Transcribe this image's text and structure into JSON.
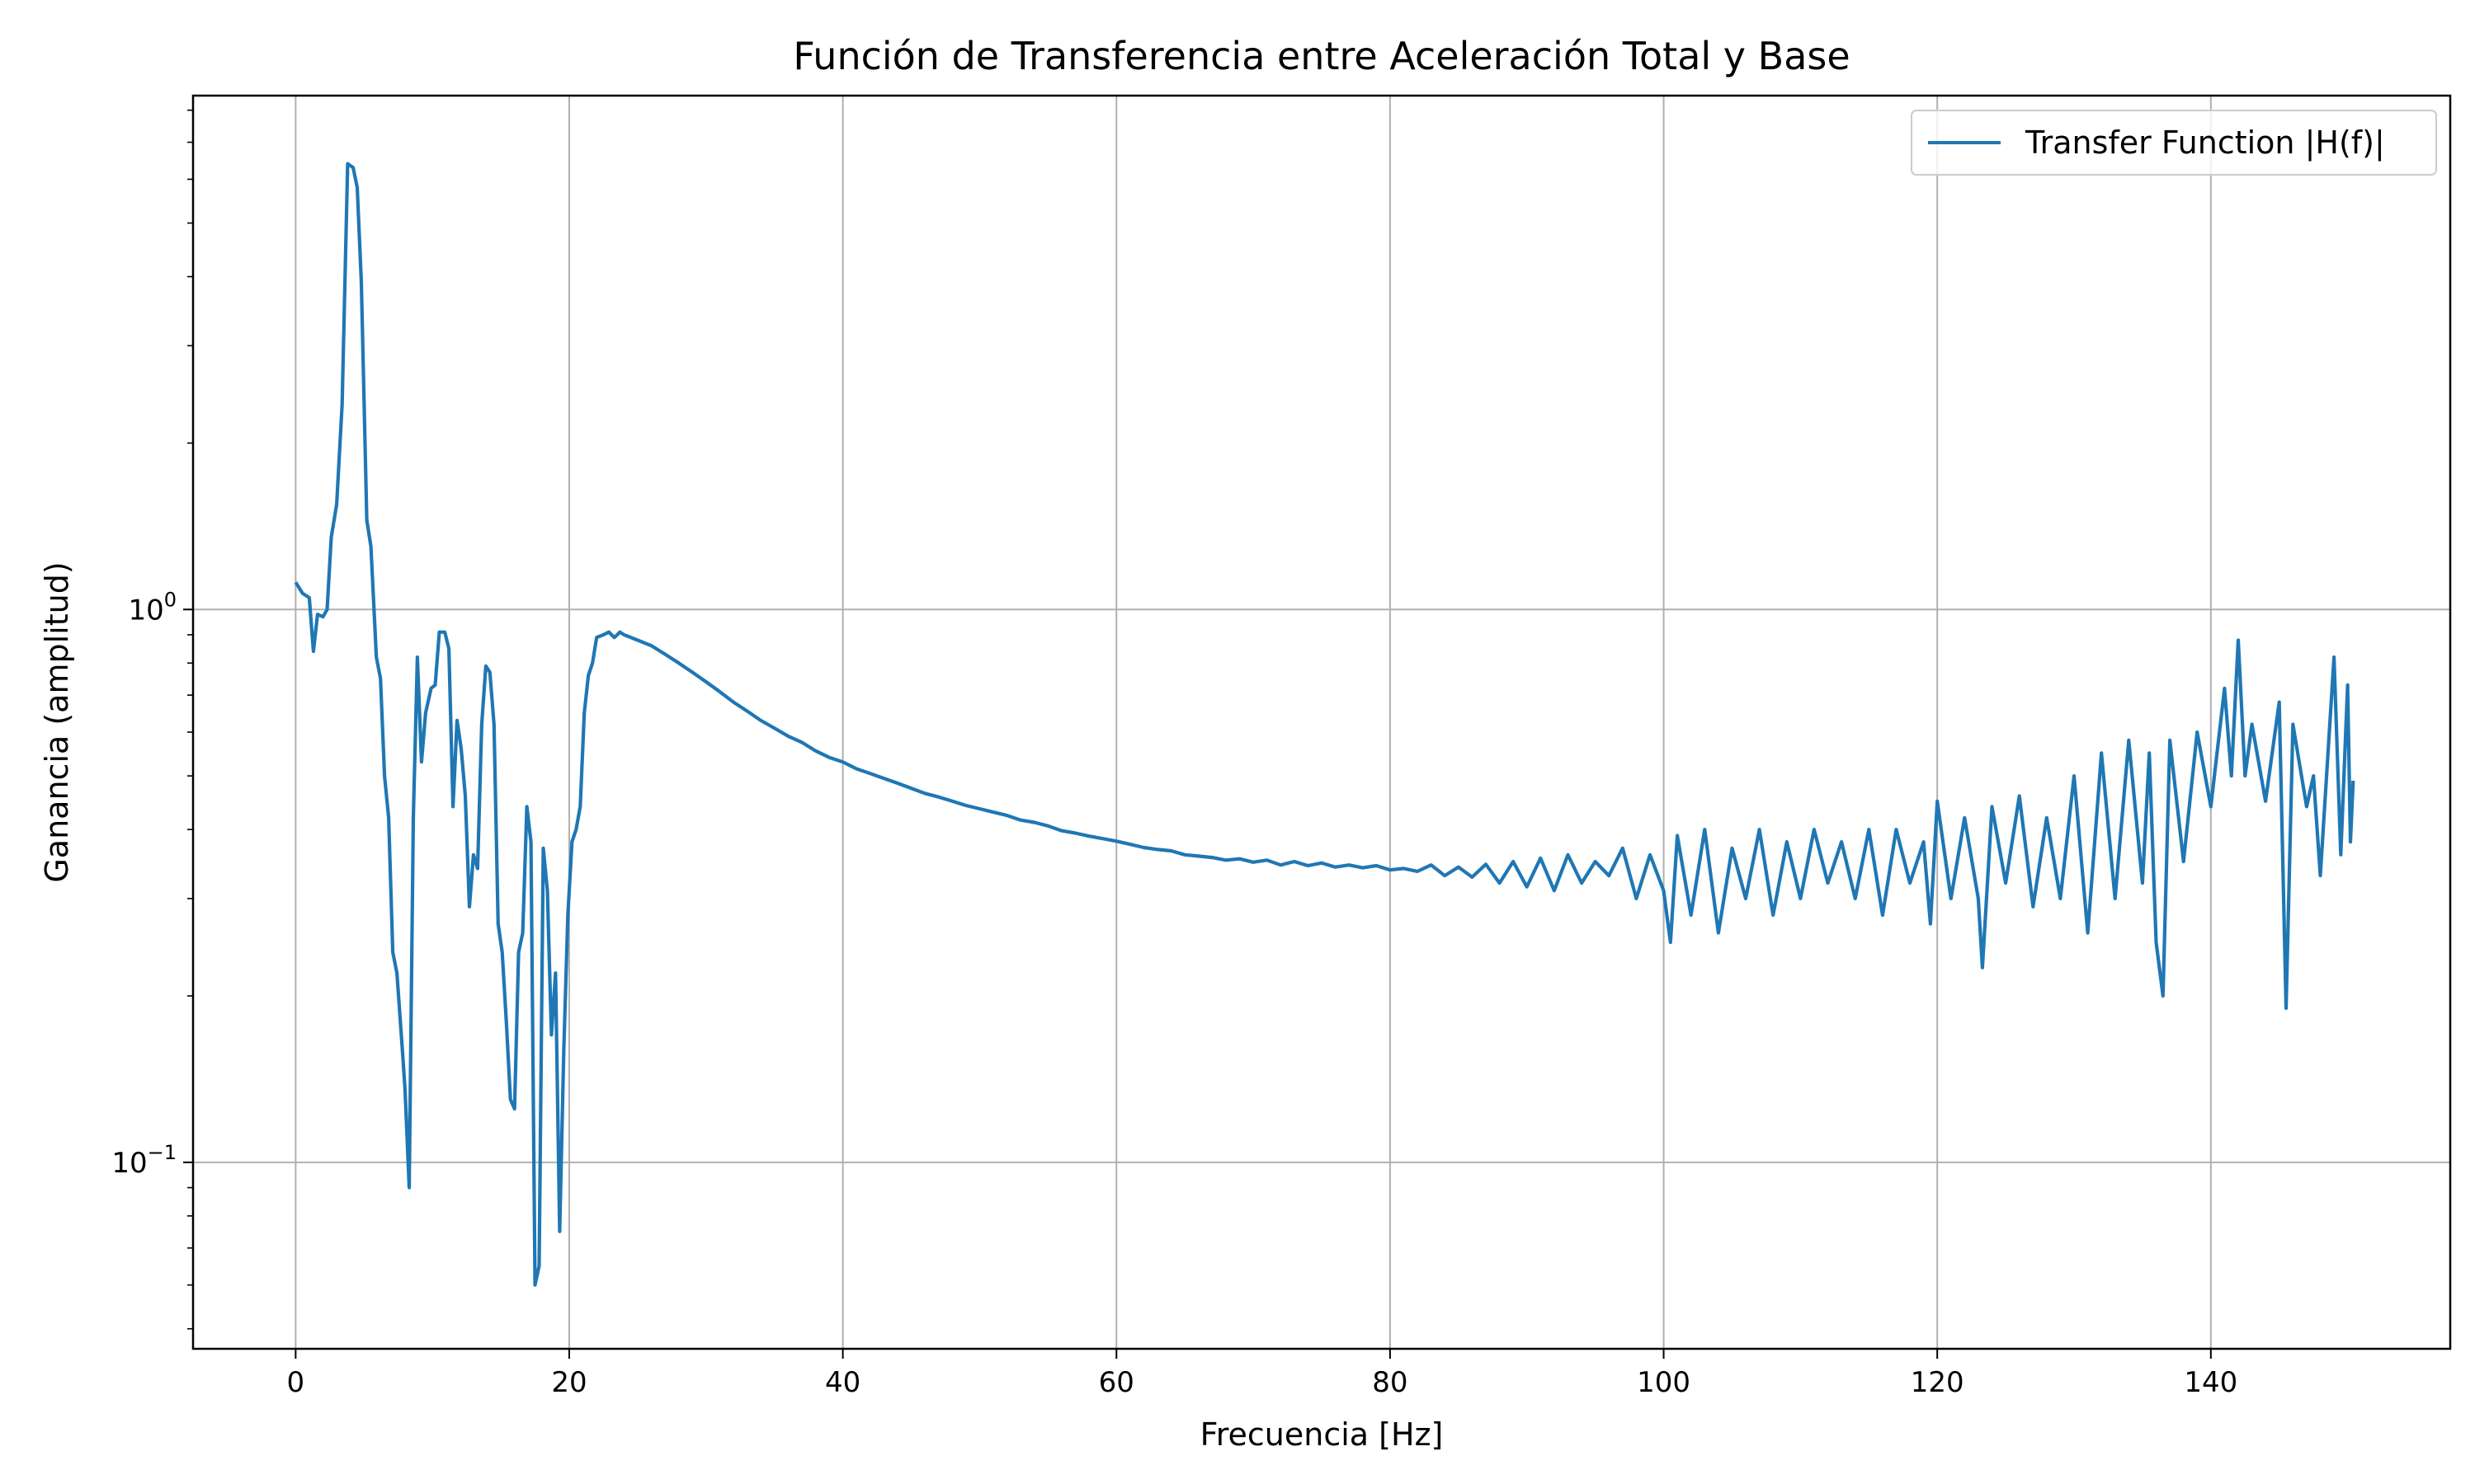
{
  "chart_data": {
    "type": "line",
    "title": "Función de Transferencia entre Aceleración Total y Base",
    "xlabel": "Frecuencia [Hz]",
    "ylabel": "Ganancia (amplitud)",
    "x_scale": "linear",
    "y_scale": "log",
    "xlim": [
      -7.5,
      157.5
    ],
    "ylim": [
      0.046,
      8.5
    ],
    "grid": true,
    "legend_position": "top-right",
    "x_ticks": [
      {
        "value": 0,
        "label": "0"
      },
      {
        "value": 20,
        "label": "20"
      },
      {
        "value": 40,
        "label": "40"
      },
      {
        "value": 60,
        "label": "60"
      },
      {
        "value": 80,
        "label": "80"
      },
      {
        "value": 100,
        "label": "100"
      },
      {
        "value": 120,
        "label": "120"
      },
      {
        "value": 140,
        "label": "140"
      }
    ],
    "y_ticks": [
      {
        "value": 0.1,
        "base": "10",
        "exp": "−1"
      },
      {
        "value": 1,
        "base": "10",
        "exp": "0"
      }
    ],
    "series": [
      {
        "name": "Transfer Function |H(f)|",
        "color": "#1f77b4",
        "points": [
          [
            0,
            1.12
          ],
          [
            0.5,
            1.07
          ],
          [
            1.0,
            1.05
          ],
          [
            1.3,
            0.84
          ],
          [
            1.6,
            0.98
          ],
          [
            2.0,
            0.97
          ],
          [
            2.3,
            1.0
          ],
          [
            2.6,
            1.35
          ],
          [
            3.0,
            1.55
          ],
          [
            3.4,
            2.35
          ],
          [
            3.8,
            6.4
          ],
          [
            4.2,
            6.3
          ],
          [
            4.5,
            5.8
          ],
          [
            4.8,
            3.9
          ],
          [
            5.2,
            1.45
          ],
          [
            5.5,
            1.3
          ],
          [
            5.9,
            0.82
          ],
          [
            6.2,
            0.75
          ],
          [
            6.5,
            0.5
          ],
          [
            6.8,
            0.42
          ],
          [
            7.1,
            0.24
          ],
          [
            7.4,
            0.22
          ],
          [
            7.8,
            0.16
          ],
          [
            8.0,
            0.135
          ],
          [
            8.3,
            0.09
          ],
          [
            8.6,
            0.42
          ],
          [
            8.9,
            0.82
          ],
          [
            9.2,
            0.53
          ],
          [
            9.5,
            0.65
          ],
          [
            9.9,
            0.72
          ],
          [
            10.2,
            0.73
          ],
          [
            10.5,
            0.91
          ],
          [
            10.9,
            0.91
          ],
          [
            11.2,
            0.85
          ],
          [
            11.5,
            0.44
          ],
          [
            11.8,
            0.63
          ],
          [
            12.1,
            0.56
          ],
          [
            12.4,
            0.46
          ],
          [
            12.7,
            0.29
          ],
          [
            13.0,
            0.36
          ],
          [
            13.3,
            0.34
          ],
          [
            13.6,
            0.62
          ],
          [
            13.9,
            0.79
          ],
          [
            14.2,
            0.77
          ],
          [
            14.5,
            0.62
          ],
          [
            14.8,
            0.27
          ],
          [
            15.1,
            0.24
          ],
          [
            15.4,
            0.18
          ],
          [
            15.7,
            0.13
          ],
          [
            16.0,
            0.125
          ],
          [
            16.3,
            0.24
          ],
          [
            16.6,
            0.26
          ],
          [
            16.9,
            0.44
          ],
          [
            17.2,
            0.38
          ],
          [
            17.5,
            0.06
          ],
          [
            17.8,
            0.065
          ],
          [
            18.1,
            0.37
          ],
          [
            18.4,
            0.31
          ],
          [
            18.7,
            0.17
          ],
          [
            19.0,
            0.22
          ],
          [
            19.3,
            0.075
          ],
          [
            19.6,
            0.16
          ],
          [
            19.9,
            0.28
          ],
          [
            20.2,
            0.38
          ],
          [
            20.5,
            0.4
          ],
          [
            20.8,
            0.44
          ],
          [
            21.1,
            0.65
          ],
          [
            21.4,
            0.76
          ],
          [
            21.7,
            0.8
          ],
          [
            22.0,
            0.89
          ],
          [
            22.5,
            0.9
          ],
          [
            22.9,
            0.91
          ],
          [
            23.3,
            0.89
          ],
          [
            23.7,
            0.91
          ],
          [
            24,
            0.9
          ],
          [
            25,
            0.88
          ],
          [
            26,
            0.86
          ],
          [
            27,
            0.83
          ],
          [
            28,
            0.8
          ],
          [
            29,
            0.77
          ],
          [
            30,
            0.74
          ],
          [
            31,
            0.71
          ],
          [
            32,
            0.68
          ],
          [
            33,
            0.655
          ],
          [
            34,
            0.63
          ],
          [
            35,
            0.61
          ],
          [
            36,
            0.59
          ],
          [
            37,
            0.575
          ],
          [
            38,
            0.555
          ],
          [
            39,
            0.54
          ],
          [
            40,
            0.53
          ],
          [
            41,
            0.515
          ],
          [
            42,
            0.505
          ],
          [
            43,
            0.495
          ],
          [
            44,
            0.485
          ],
          [
            45,
            0.475
          ],
          [
            46,
            0.465
          ],
          [
            47,
            0.458
          ],
          [
            48,
            0.45
          ],
          [
            49,
            0.442
          ],
          [
            50,
            0.436
          ],
          [
            51,
            0.43
          ],
          [
            52,
            0.424
          ],
          [
            53,
            0.416
          ],
          [
            54,
            0.412
          ],
          [
            55,
            0.406
          ],
          [
            56,
            0.398
          ],
          [
            57,
            0.394
          ],
          [
            58,
            0.389
          ],
          [
            59,
            0.385
          ],
          [
            60,
            0.381
          ],
          [
            61,
            0.376
          ],
          [
            62,
            0.371
          ],
          [
            63,
            0.368
          ],
          [
            64,
            0.366
          ],
          [
            65,
            0.36
          ],
          [
            66,
            0.358
          ],
          [
            67,
            0.356
          ],
          [
            68,
            0.352
          ],
          [
            69,
            0.354
          ],
          [
            70,
            0.349
          ],
          [
            71,
            0.352
          ],
          [
            72,
            0.345
          ],
          [
            73,
            0.35
          ],
          [
            74,
            0.344
          ],
          [
            75,
            0.348
          ],
          [
            76,
            0.342
          ],
          [
            77,
            0.345
          ],
          [
            78,
            0.341
          ],
          [
            79,
            0.344
          ],
          [
            80,
            0.338
          ],
          [
            81,
            0.34
          ],
          [
            82,
            0.336
          ],
          [
            83,
            0.345
          ],
          [
            84,
            0.33
          ],
          [
            85,
            0.342
          ],
          [
            86,
            0.328
          ],
          [
            87,
            0.346
          ],
          [
            88,
            0.32
          ],
          [
            89,
            0.35
          ],
          [
            90,
            0.315
          ],
          [
            91,
            0.355
          ],
          [
            92,
            0.31
          ],
          [
            93,
            0.36
          ],
          [
            94,
            0.32
          ],
          [
            95,
            0.35
          ],
          [
            96,
            0.33
          ],
          [
            97,
            0.37
          ],
          [
            98,
            0.3
          ],
          [
            99,
            0.36
          ],
          [
            100,
            0.31
          ],
          [
            100.5,
            0.25
          ],
          [
            101,
            0.39
          ],
          [
            102,
            0.28
          ],
          [
            103,
            0.4
          ],
          [
            104,
            0.26
          ],
          [
            105,
            0.37
          ],
          [
            106,
            0.3
          ],
          [
            107,
            0.4
          ],
          [
            108,
            0.28
          ],
          [
            109,
            0.38
          ],
          [
            110,
            0.3
          ],
          [
            111,
            0.4
          ],
          [
            112,
            0.32
          ],
          [
            113,
            0.38
          ],
          [
            114,
            0.3
          ],
          [
            115,
            0.4
          ],
          [
            116,
            0.28
          ],
          [
            117,
            0.4
          ],
          [
            118,
            0.32
          ],
          [
            119,
            0.38
          ],
          [
            119.5,
            0.27
          ],
          [
            120,
            0.45
          ],
          [
            121,
            0.3
          ],
          [
            122,
            0.42
          ],
          [
            123,
            0.3
          ],
          [
            123.3,
            0.225
          ],
          [
            124,
            0.44
          ],
          [
            125,
            0.32
          ],
          [
            126,
            0.46
          ],
          [
            127,
            0.29
          ],
          [
            128,
            0.42
          ],
          [
            129,
            0.3
          ],
          [
            130,
            0.5
          ],
          [
            131,
            0.26
          ],
          [
            132,
            0.55
          ],
          [
            133,
            0.3
          ],
          [
            134,
            0.58
          ],
          [
            135,
            0.32
          ],
          [
            135.5,
            0.55
          ],
          [
            136,
            0.25
          ],
          [
            136.5,
            0.2
          ],
          [
            137,
            0.58
          ],
          [
            138,
            0.35
          ],
          [
            139,
            0.6
          ],
          [
            140,
            0.44
          ],
          [
            141,
            0.72
          ],
          [
            141.5,
            0.5
          ],
          [
            142,
            0.88
          ],
          [
            142.5,
            0.5
          ],
          [
            143,
            0.62
          ],
          [
            144,
            0.45
          ],
          [
            145,
            0.68
          ],
          [
            145.5,
            0.19
          ],
          [
            146,
            0.62
          ],
          [
            147,
            0.44
          ],
          [
            147.5,
            0.5
          ],
          [
            148,
            0.33
          ],
          [
            149,
            0.82
          ],
          [
            149.5,
            0.36
          ],
          [
            150,
            0.73
          ],
          [
            150.2,
            0.38
          ],
          [
            150.4,
            0.49
          ]
        ]
      }
    ]
  }
}
